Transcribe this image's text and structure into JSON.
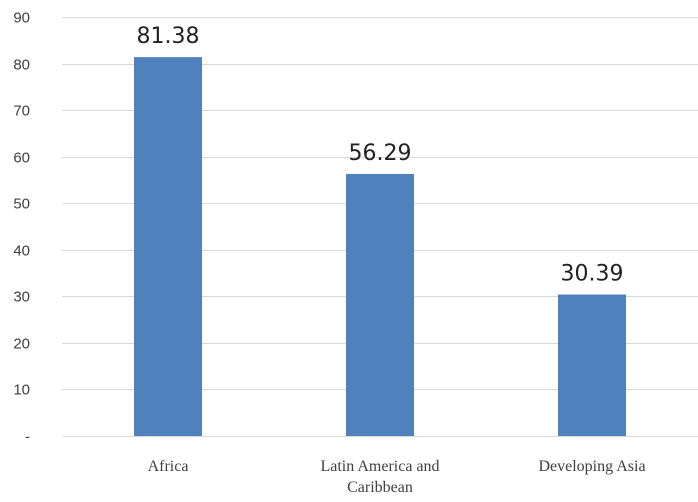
{
  "chart_data": {
    "type": "bar",
    "categories": [
      [
        "Africa"
      ],
      [
        "Latin America and",
        "Caribbean"
      ],
      [
        "Developing Asia"
      ]
    ],
    "values": [
      81.38,
      56.29,
      30.39
    ],
    "value_labels": [
      "81.38",
      "56.29",
      "30.39"
    ],
    "ylim": [
      0,
      90
    ],
    "yticks": [
      0,
      10,
      20,
      30,
      40,
      50,
      60,
      70,
      80,
      90
    ],
    "ytick_labels": [
      "-",
      "10",
      "20",
      "30",
      "40",
      "50",
      "60",
      "70",
      "80",
      "90"
    ],
    "grid": true,
    "legend": false,
    "bar_color": "#4f81bd"
  }
}
